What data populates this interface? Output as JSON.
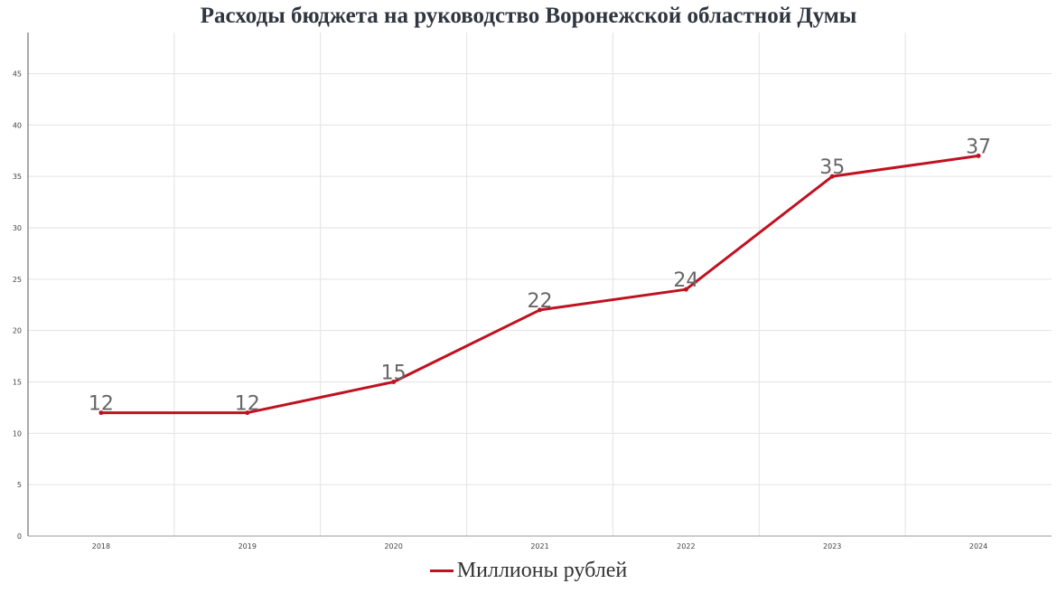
{
  "title": "Расходы бюджета на руководство Воронежской областной Думы",
  "chart_data": {
    "type": "line",
    "title": "Расходы бюджета на руководство Воронежской областной Думы",
    "categories": [
      "2018",
      "2019",
      "2020",
      "2021",
      "2022",
      "2023",
      "2024"
    ],
    "series": [
      {
        "name": "Миллионы рублей",
        "values": [
          12,
          12,
          15,
          22,
          24,
          35,
          37
        ],
        "color": "#c0111f"
      }
    ],
    "yticks": [
      0,
      5,
      10,
      15,
      20,
      25,
      30,
      35,
      40,
      45
    ],
    "ylim": [
      0,
      49
    ],
    "grid": true,
    "legend": "bottom-center",
    "data_labels": true
  }
}
